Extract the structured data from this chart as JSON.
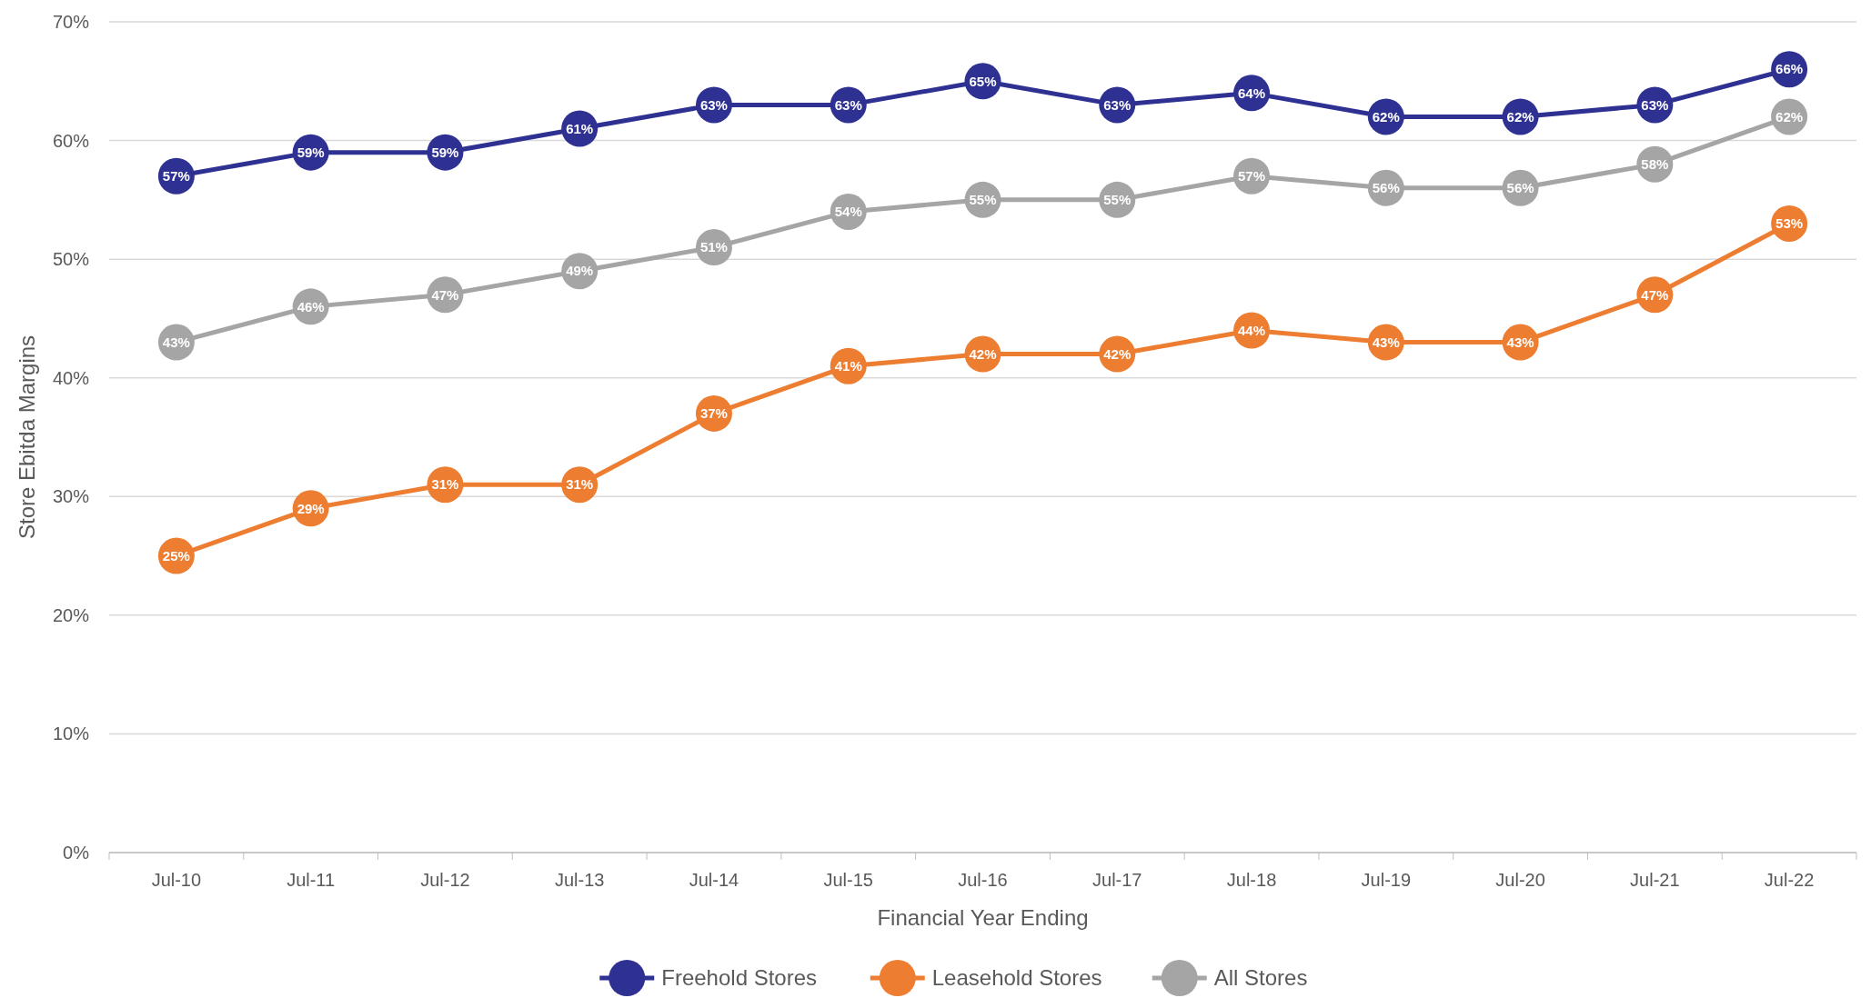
{
  "chart_data": {
    "type": "line",
    "xlabel": "Financial Year Ending",
    "ylabel": "Store Ebitda Margins",
    "categories": [
      "Jul-10",
      "Jul-11",
      "Jul-12",
      "Jul-13",
      "Jul-14",
      "Jul-15",
      "Jul-16",
      "Jul-17",
      "Jul-18",
      "Jul-19",
      "Jul-20",
      "Jul-21",
      "Jul-22"
    ],
    "series": [
      {
        "name": "Freehold Stores",
        "color": "#2e3192",
        "values": [
          57,
          59,
          59,
          61,
          63,
          63,
          65,
          63,
          64,
          62,
          62,
          63,
          66
        ],
        "value_labels": [
          "57%",
          "59%",
          "59%",
          "61%",
          "63%",
          "63%",
          "65%",
          "63%",
          "64%",
          "62%",
          "62%",
          "63%",
          "66%"
        ]
      },
      {
        "name": "Leasehold Stores",
        "color": "#ed7d31",
        "values": [
          25,
          29,
          31,
          31,
          37,
          41,
          42,
          42,
          44,
          43,
          43,
          47,
          53
        ],
        "value_labels": [
          "25%",
          "29%",
          "31%",
          "31%",
          "37%",
          "41%",
          "42%",
          "42%",
          "44%",
          "43%",
          "43%",
          "47%",
          "53%"
        ]
      },
      {
        "name": "All Stores",
        "color": "#a5a5a5",
        "values": [
          43,
          46,
          47,
          49,
          51,
          54,
          55,
          55,
          57,
          56,
          56,
          58,
          62
        ],
        "value_labels": [
          "43%",
          "46%",
          "47%",
          "49%",
          "51%",
          "54%",
          "55%",
          "55%",
          "57%",
          "56%",
          "56%",
          "58%",
          "62%"
        ]
      }
    ],
    "ylim": [
      0,
      70
    ],
    "yticks": [
      {
        "value": 0,
        "label": "0%"
      },
      {
        "value": 10,
        "label": "10%"
      },
      {
        "value": 20,
        "label": "20%"
      },
      {
        "value": 30,
        "label": "30%"
      },
      {
        "value": 40,
        "label": "40%"
      },
      {
        "value": 50,
        "label": "50%"
      },
      {
        "value": 60,
        "label": "60%"
      },
      {
        "value": 70,
        "label": "70%"
      }
    ],
    "grid": "y",
    "legend": "bottom",
    "marker": "circle",
    "line_style": "solid"
  }
}
